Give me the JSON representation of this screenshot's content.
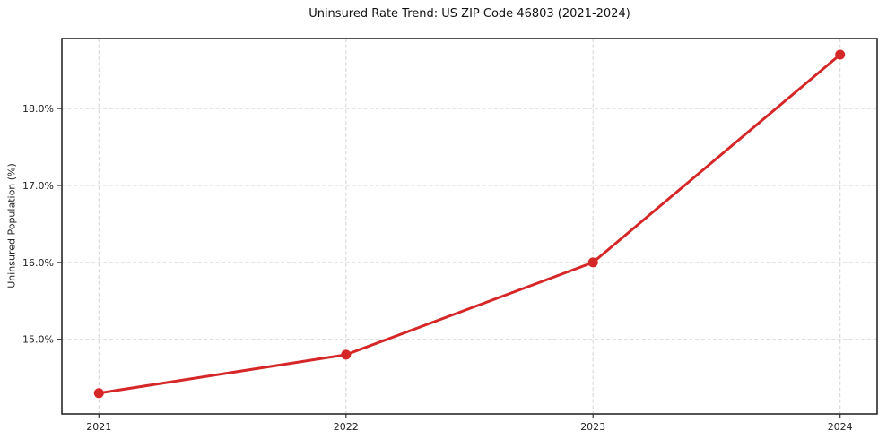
{
  "figure": {
    "kind": "matplotlib-line-chart"
  },
  "chart_data": {
    "type": "line",
    "title": "Uninsured Rate Trend: US ZIP Code 46803 (2021-2024)",
    "xlabel": "",
    "ylabel": "Uninsured Population (%)",
    "x": [
      2021,
      2022,
      2023,
      2024
    ],
    "series": [
      {
        "name": "Uninsured Population (%)",
        "values": [
          14.3,
          14.8,
          16.0,
          18.7
        ],
        "color": "#d62728",
        "marker": "circle",
        "marker_radius": 5.5,
        "line_width": 3
      }
    ],
    "xlim": [
      2020.85,
      2024.15
    ],
    "ylim": [
      14.03,
      18.91
    ],
    "xticks": [
      {
        "value": 2021,
        "label": "2021"
      },
      {
        "value": 2022,
        "label": "2022"
      },
      {
        "value": 2023,
        "label": "2023"
      },
      {
        "value": 2024,
        "label": "2024"
      }
    ],
    "yticks": [
      {
        "value": 15.0,
        "label": "15.0%"
      },
      {
        "value": 16.0,
        "label": "16.0%"
      },
      {
        "value": 17.0,
        "label": "17.0%"
      },
      {
        "value": 18.0,
        "label": "18.0%"
      }
    ],
    "grid": true,
    "grid_style": "dashed",
    "grid_color": "#d4d4d4",
    "legend": "none",
    "frame_color": "#1a1a1a",
    "background_color": "#ffffff"
  }
}
